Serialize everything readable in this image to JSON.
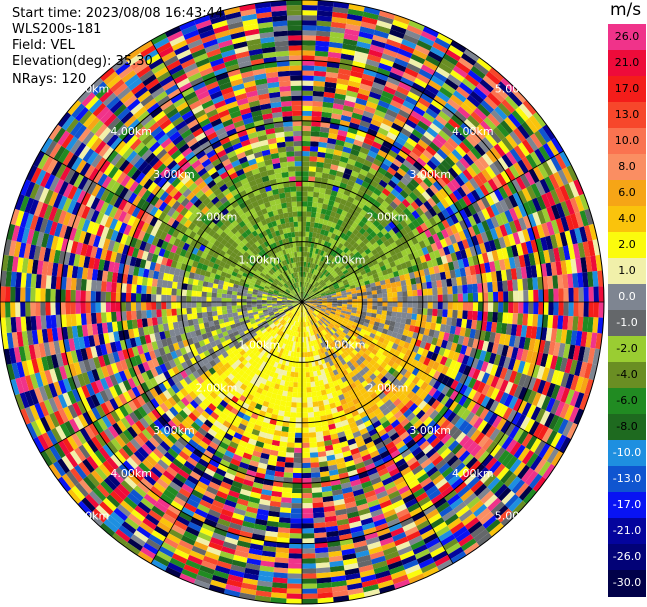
{
  "header": {
    "start_time": "Start time: 2023/08/08 16:43:44",
    "instrument": "WLS200s-181",
    "field": "Field: VEL",
    "elevation": "Elevation(deg): 35.30",
    "nrays": "NRays: 120"
  },
  "colorbar": {
    "unit": "m/s",
    "levels": [
      {
        "label": "26.0",
        "color": "#f0338a"
      },
      {
        "label": "21.0",
        "color": "#ee0b3a"
      },
      {
        "label": "17.0",
        "color": "#f41d1a"
      },
      {
        "label": "13.0",
        "color": "#f7472b"
      },
      {
        "label": "10.0",
        "color": "#fa7350"
      },
      {
        "label": "8.0",
        "color": "#fa8e62"
      },
      {
        "label": "6.0",
        "color": "#f6a516"
      },
      {
        "label": "4.0",
        "color": "#fac30c"
      },
      {
        "label": "2.0",
        "color": "#fbfb0d"
      },
      {
        "label": "1.0",
        "color": "#f1f0aa"
      },
      {
        "label": "0.0",
        "color": "#7e8591"
      },
      {
        "label": "-1.0",
        "color": "#64676a"
      },
      {
        "label": "-2.0",
        "color": "#9acd32"
      },
      {
        "label": "-4.0",
        "color": "#6a8e23"
      },
      {
        "label": "-6.0",
        "color": "#218b22"
      },
      {
        "label": "-8.0",
        "color": "#1e6a1f"
      },
      {
        "label": "-10.0",
        "color": "#1e8fe0"
      },
      {
        "label": "-13.0",
        "color": "#0f55d0"
      },
      {
        "label": "-17.0",
        "color": "#0813f3"
      },
      {
        "label": "-21.0",
        "color": "#04049d"
      },
      {
        "label": "-26.0",
        "color": "#020277"
      },
      {
        "label": "-30.0",
        "color": "#010149"
      }
    ]
  },
  "chart_data": {
    "type": "heatmap",
    "projection": "polar-ppi",
    "field": "VEL",
    "units": "m/s",
    "nrays": 120,
    "elevation_deg": 35.3,
    "max_range_km": 5.0,
    "range_ring_labels": [
      "1.00km",
      "2.00km",
      "3.00km",
      "4.00km",
      "5.00km"
    ],
    "clean_region_range_km": 2.2,
    "description_regions": [
      {
        "sector": "north",
        "velocity_range": [
          -8.0,
          -2.0
        ],
        "dominant_label": "-4.0"
      },
      {
        "sector": "west-northwest",
        "velocity_range": [
          -1.0,
          0.0
        ],
        "dominant_label": "0.0"
      },
      {
        "sector": "south",
        "velocity_range": [
          2.0,
          6.0
        ],
        "dominant_label": "2.0"
      },
      {
        "sector": "east-southeast",
        "velocity_range": [
          4.0,
          6.0
        ],
        "dominant_label": "4.0"
      }
    ],
    "outer_region": "noise (all velocity classes)"
  }
}
